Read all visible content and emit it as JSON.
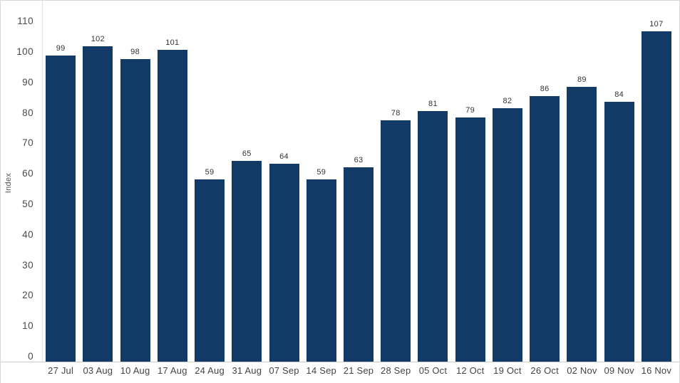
{
  "chart_data": {
    "type": "bar",
    "title": "",
    "xlabel": "",
    "ylabel": "Index",
    "categories": [
      "27 Jul",
      "03 Aug",
      "10 Aug",
      "17 Aug",
      "24 Aug",
      "31 Aug",
      "07 Sep",
      "14 Sep",
      "21 Sep",
      "28 Sep",
      "05 Oct",
      "12 Oct",
      "19 Oct",
      "26 Oct",
      "02 Nov",
      "09 Nov",
      "16 Nov"
    ],
    "values": [
      99,
      102,
      98,
      101,
      59,
      65,
      64,
      59,
      63,
      78,
      81,
      79,
      82,
      86,
      89,
      84,
      107
    ],
    "yticks": [
      0,
      10,
      20,
      30,
      40,
      50,
      60,
      70,
      80,
      90,
      100,
      110
    ],
    "ylim": [
      0,
      110
    ],
    "grid": false,
    "legend_position": "none",
    "data_labels": true,
    "bar_color": "#123A66",
    "axis_line_color": "#cccccc",
    "tick_label_color": "#4a4a4a",
    "value_label_color": "#333333"
  }
}
